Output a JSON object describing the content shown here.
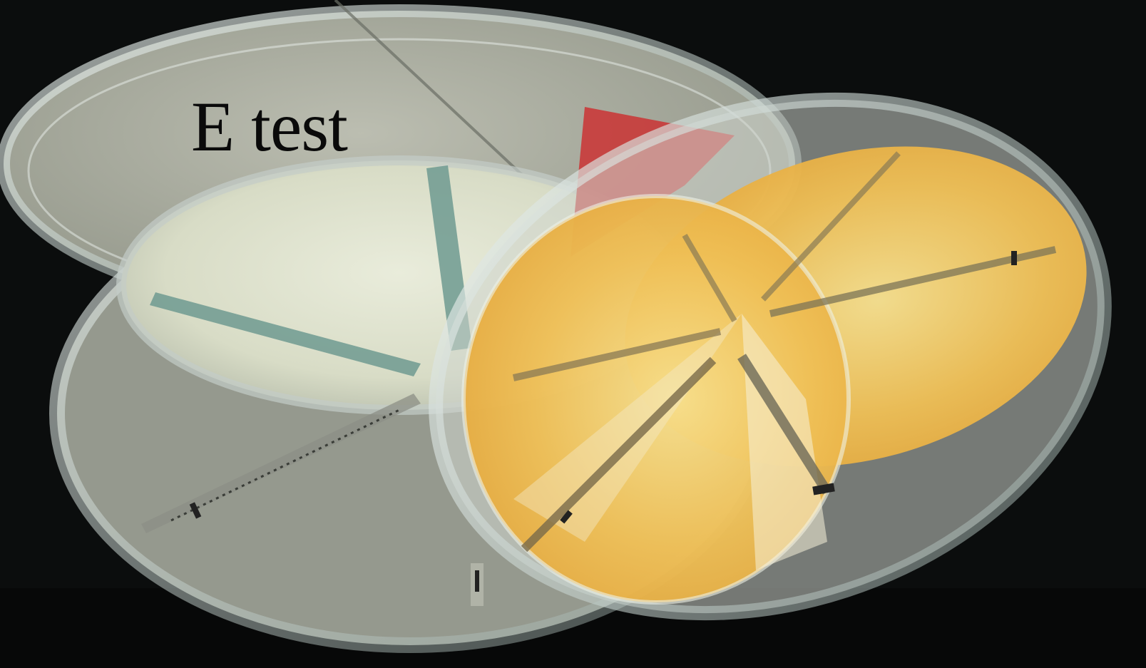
{
  "caption": "E test",
  "colors": {
    "background": "#0b0d0d",
    "agar_pale": "#dfe2cf",
    "agar_yellow": "#f0c25a",
    "strip_blue_green": "#6f9a90",
    "strip_red": "#c93a3a",
    "glass_edge": "#c9d6d2"
  }
}
